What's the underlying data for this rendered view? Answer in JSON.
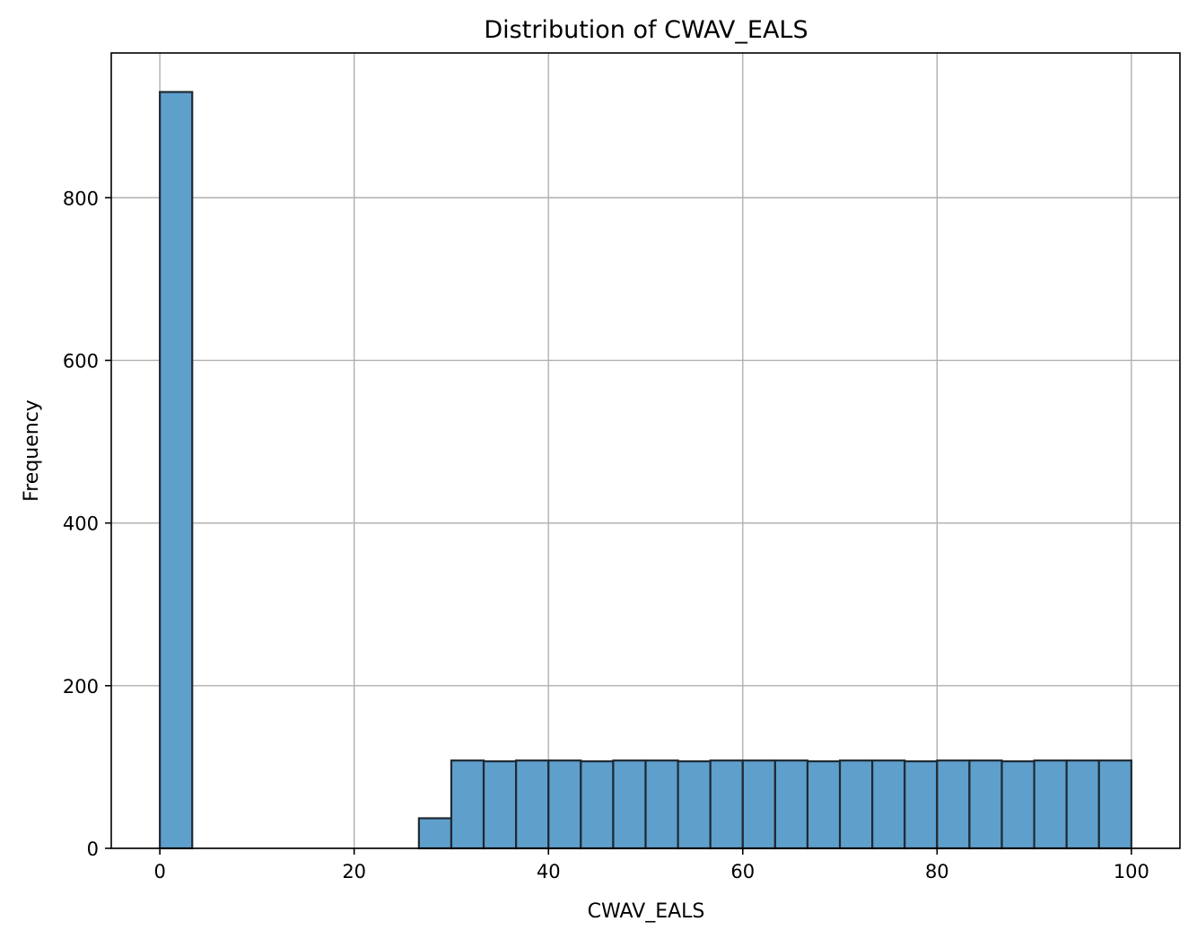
{
  "chart_data": {
    "type": "bar",
    "subtype": "histogram",
    "title": "Distribution of CWAV_EALS",
    "xlabel": "CWAV_EALS",
    "ylabel": "Frequency",
    "xlim": [
      -5,
      105
    ],
    "ylim": [
      0,
      978
    ],
    "xticks": [
      0,
      20,
      40,
      60,
      80,
      100
    ],
    "yticks": [
      0,
      200,
      400,
      600,
      800
    ],
    "grid": true,
    "legend": "none",
    "bin_edges": [
      0,
      3.3333,
      6.6667,
      10,
      13.3333,
      16.6667,
      20,
      23.3333,
      26.6667,
      30,
      33.3333,
      36.6667,
      40,
      43.3333,
      46.6667,
      50,
      53.3333,
      56.6667,
      60,
      63.3333,
      66.6667,
      70,
      73.3333,
      76.6667,
      80,
      83.3333,
      86.6667,
      90,
      93.3333,
      96.6667,
      100
    ],
    "counts": [
      930,
      0,
      0,
      0,
      0,
      0,
      0,
      0,
      37,
      108,
      107,
      108,
      108,
      107,
      108,
      108,
      107,
      108,
      108,
      108,
      107,
      108,
      108,
      107,
      108,
      108,
      107,
      108,
      108,
      108
    ],
    "colors": {
      "bar_fill": "#5f9fcc",
      "bar_edge": "#1f2a33",
      "grid": "#b0b0b0",
      "axis": "#000000"
    }
  }
}
